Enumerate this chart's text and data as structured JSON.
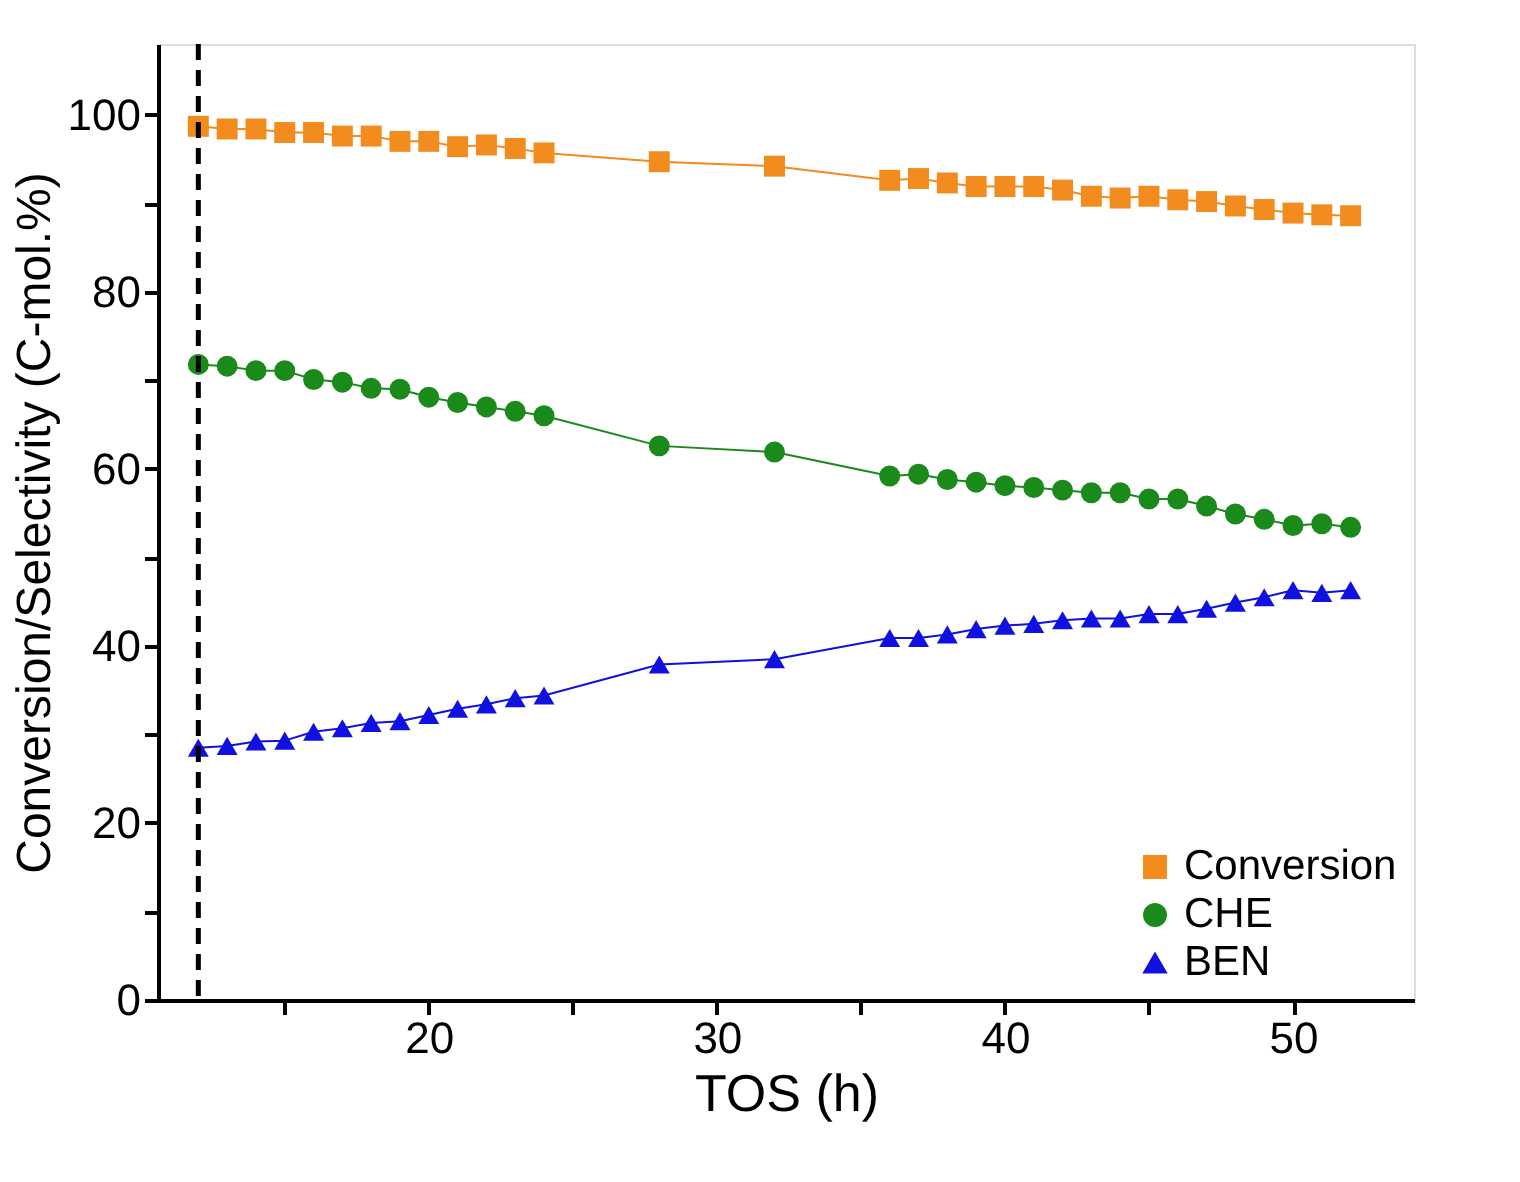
{
  "chart_data": {
    "type": "line",
    "xlabel": "TOS (h)",
    "ylabel": "Conversion/Selectivity (C-mol.%)",
    "x": [
      12,
      13,
      14,
      15,
      16,
      17,
      18,
      19,
      20,
      21,
      22,
      23,
      24,
      28,
      32,
      36,
      37,
      38,
      39,
      40,
      41,
      42,
      43,
      44,
      45,
      46,
      47,
      48,
      49,
      50,
      51,
      52
    ],
    "series": [
      {
        "name": "Conversion",
        "color": "#f28c1e",
        "marker": "square",
        "values": [
          98.7,
          98.4,
          98.4,
          98.0,
          98.0,
          97.6,
          97.6,
          97.0,
          97.0,
          96.4,
          96.6,
          96.2,
          95.7,
          94.7,
          94.2,
          92.6,
          92.8,
          92.3,
          91.9,
          91.9,
          91.9,
          91.5,
          90.8,
          90.6,
          90.8,
          90.4,
          90.2,
          89.7,
          89.3,
          88.9,
          88.7,
          88.6
        ]
      },
      {
        "name": "CHE",
        "color": "#1a8a1a",
        "marker": "circle",
        "values": [
          71.8,
          71.6,
          71.1,
          71.1,
          70.1,
          69.8,
          69.1,
          69.0,
          68.1,
          67.5,
          67.0,
          66.5,
          66.0,
          62.6,
          61.9,
          59.2,
          59.4,
          58.8,
          58.5,
          58.1,
          57.9,
          57.6,
          57.3,
          57.3,
          56.6,
          56.6,
          55.8,
          54.9,
          54.3,
          53.6,
          53.8,
          53.4
        ]
      },
      {
        "name": "BEN",
        "color": "#1010e0",
        "marker": "triangle",
        "values": [
          28.5,
          28.7,
          29.2,
          29.3,
          30.3,
          30.7,
          31.3,
          31.5,
          32.2,
          32.9,
          33.4,
          34.1,
          34.4,
          37.9,
          38.5,
          40.9,
          40.9,
          41.3,
          41.9,
          42.3,
          42.5,
          42.9,
          43.1,
          43.1,
          43.6,
          43.6,
          44.2,
          44.9,
          45.5,
          46.3,
          46.0,
          46.3
        ]
      }
    ],
    "xlim": [
      10.6,
      54.2
    ],
    "xticks": [
      {
        "value": 15,
        "label": null
      },
      20,
      {
        "value": 25,
        "label": null
      },
      30,
      {
        "value": 35,
        "label": null
      },
      40,
      {
        "value": 45,
        "label": null
      },
      50
    ],
    "ylim": [
      0,
      108
    ],
    "yticks": [
      0,
      {
        "value": 10,
        "label": null
      },
      20,
      {
        "value": 30,
        "label": null
      },
      40,
      {
        "value": 50,
        "label": null
      },
      60,
      {
        "value": 70,
        "label": null
      },
      80,
      {
        "value": 90,
        "label": null
      },
      100
    ],
    "ref_lines": [
      {
        "axis": "x",
        "value": 12,
        "color": "#000000",
        "line_style": "dashed"
      }
    ],
    "legend": "bottom right",
    "grid": false,
    "line_style": "solid"
  }
}
